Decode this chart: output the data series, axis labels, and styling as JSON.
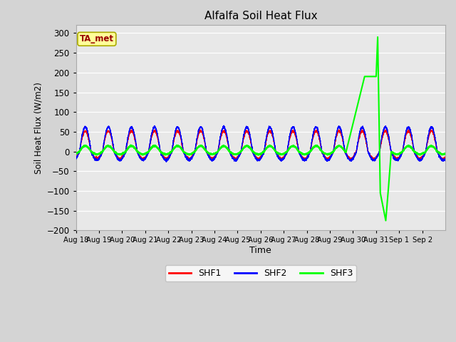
{
  "title": "Alfalfa Soil Heat Flux",
  "xlabel": "Time",
  "ylabel": "Soil Heat Flux (W/m2)",
  "ylim": [
    -200,
    320
  ],
  "yticks": [
    -200,
    -150,
    -100,
    -50,
    0,
    50,
    100,
    150,
    200,
    250,
    300
  ],
  "fig_bg_color": "#d4d4d4",
  "plot_bg_color": "#e8e8e8",
  "grid_color": "#ffffff",
  "annotation_text": "TA_met",
  "annotation_bg": "#ffff99",
  "annotation_border": "#aaaa00",
  "annotation_text_color": "#990000",
  "shf1_color": "#ff0000",
  "shf2_color": "#0000ff",
  "shf3_color": "#00ff00",
  "legend_labels": [
    "SHF1",
    "SHF2",
    "SHF3"
  ],
  "n_days": 16,
  "x_tick_labels": [
    "Aug 18",
    "Aug 19",
    "Aug 20",
    "Aug 21",
    "Aug 22",
    "Aug 23",
    "Aug 24",
    "Aug 25",
    "Aug 26",
    "Aug 27",
    "Aug 28",
    "Aug 29",
    "Aug 30",
    "Aug 31",
    "Sep 1",
    "Sep 2"
  ]
}
